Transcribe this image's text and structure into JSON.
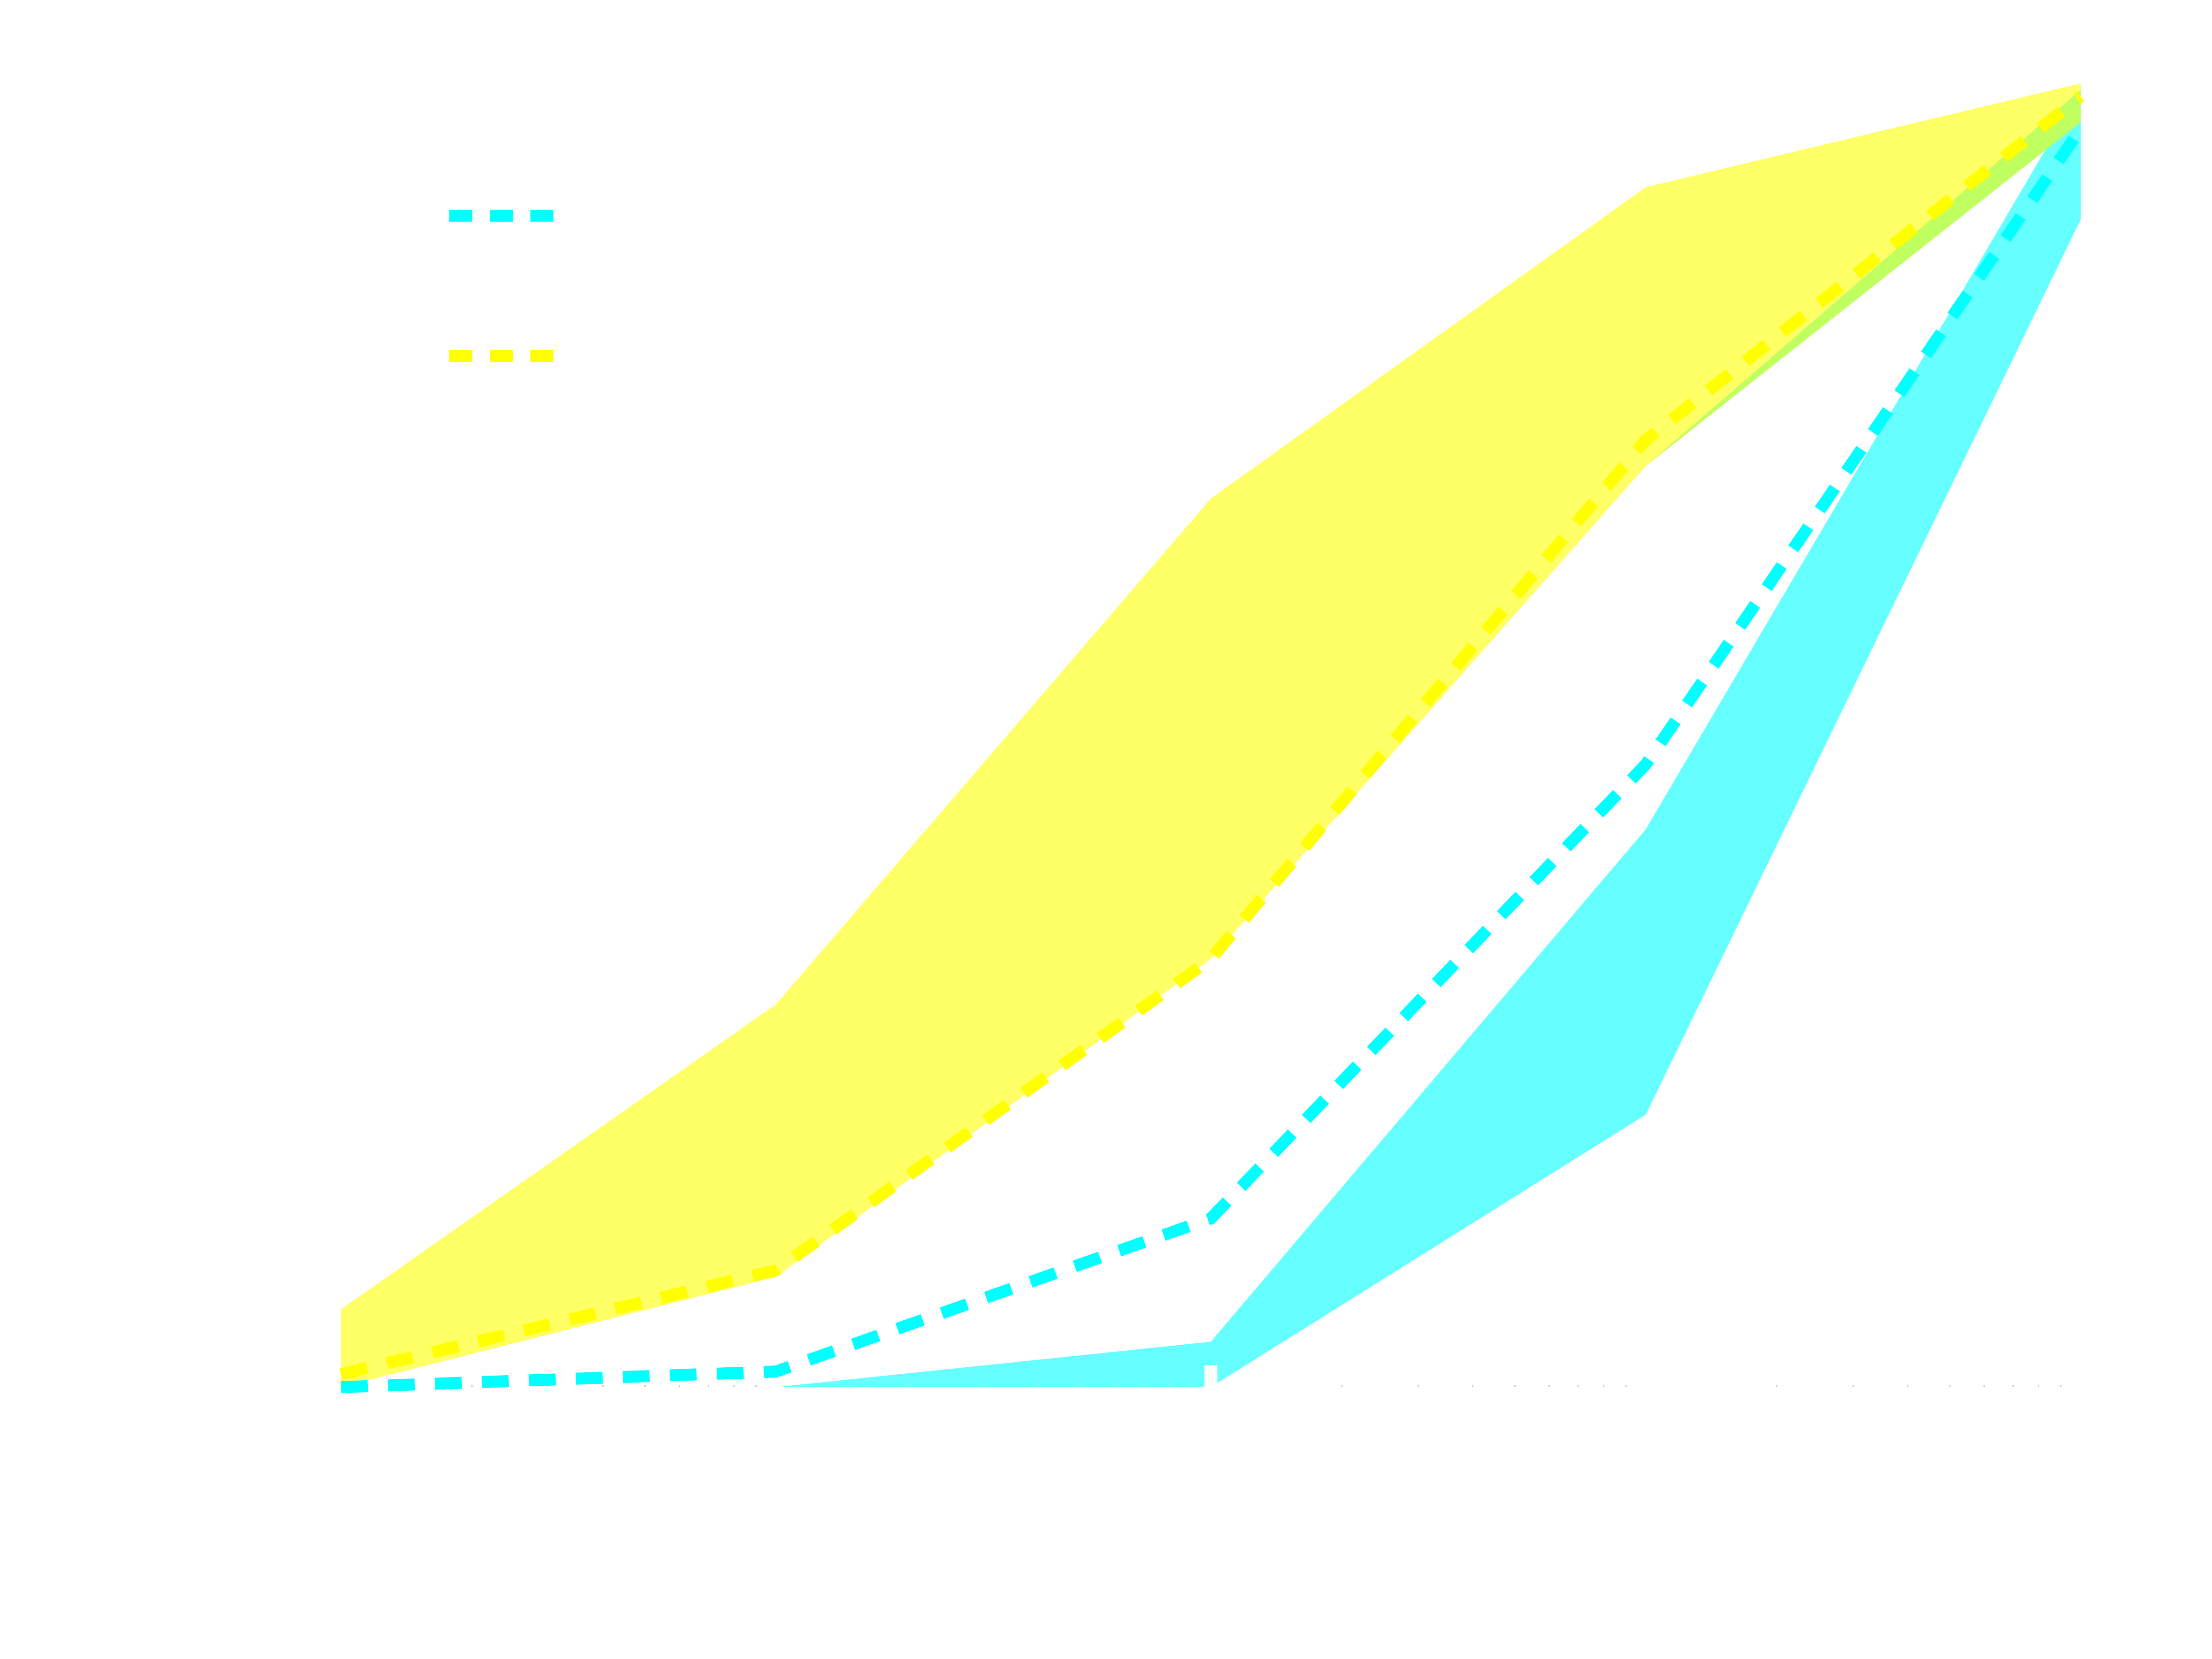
{
  "chart_data": {
    "type": "area",
    "title": "",
    "xlabel": "",
    "ylabel": "",
    "x_scale": "log",
    "x": [
      1,
      10,
      100,
      1000,
      10000
    ],
    "xlim": [
      1,
      10000
    ],
    "ylim": [
      0,
      1
    ],
    "grid": false,
    "legend": {
      "placement": "top-left"
    },
    "series": [
      {
        "color": "#00ffff",
        "line_style": "dashed",
        "mean": [
          0.0,
          0.012,
          0.13,
          0.48,
          0.97
        ],
        "band_lower": [
          0.0,
          0.0,
          0.0,
          0.21,
          0.9
        ],
        "band_upper": [
          0.0,
          0.0,
          0.035,
          0.43,
          1.0
        ]
      },
      {
        "color": "#ffff00",
        "line_style": "dashed",
        "mean": [
          0.01,
          0.09,
          0.33,
          0.73,
          0.995
        ],
        "band_lower": [
          0.0,
          0.085,
          0.33,
          0.71,
          0.975
        ],
        "band_upper": [
          0.06,
          0.295,
          0.685,
          0.925,
          1.005
        ]
      }
    ],
    "band_overlap_color": "#c0ff60"
  }
}
